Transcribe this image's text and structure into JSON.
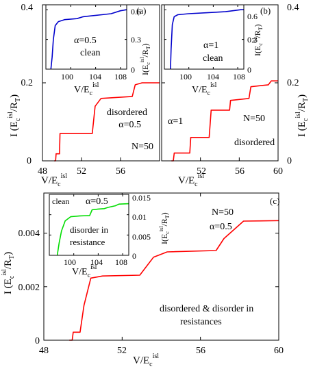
{
  "chart_data": [
    {
      "type": "line",
      "panel_label": "(a)",
      "xlabel": "V/E_c^isl",
      "ylabel": "I (E_c^isl/R_T)",
      "xlim": [
        48,
        60
      ],
      "ylim": [
        0,
        0.4
      ],
      "xticks": [
        "48",
        "52",
        "56",
        "60"
      ],
      "yticks": [
        "0",
        "0.2",
        "0.4"
      ],
      "annotations": [
        "disordered",
        "α=0.5",
        "N=50"
      ],
      "series": [
        {
          "color": "#ff0000",
          "points": [
            [
              49.2,
              0
            ],
            [
              49.35,
              0
            ],
            [
              49.4,
              0.018
            ],
            [
              49.75,
              0.018
            ],
            [
              49.8,
              0.07
            ],
            [
              53.1,
              0.07
            ],
            [
              53.4,
              0.14
            ],
            [
              54.0,
              0.16
            ],
            [
              57.2,
              0.165
            ],
            [
              57.5,
              0.195
            ],
            [
              58.2,
              0.2
            ],
            [
              60,
              0.2
            ]
          ]
        }
      ],
      "inset": {
        "xlabel": "V/E_c^isl",
        "ylabel": "I(E_c^isl/R_T)",
        "xlim": [
          96,
          109
        ],
        "ylim": [
          0,
          0.65
        ],
        "xticks": [
          "100",
          "104",
          "108"
        ],
        "yticks": [
          "0",
          "0.3",
          "0.6"
        ],
        "annotations": [
          "α=0.5",
          "clean"
        ],
        "series": [
          {
            "color": "#0000cc",
            "points": [
              [
                96.8,
                0
              ],
              [
                97.0,
                0.12
              ],
              [
                97.2,
                0.3
              ],
              [
                97.5,
                0.44
              ],
              [
                98.0,
                0.48
              ],
              [
                99.0,
                0.5
              ],
              [
                101.0,
                0.51
              ],
              [
                102.0,
                0.53
              ],
              [
                103.5,
                0.54
              ],
              [
                105.0,
                0.55
              ],
              [
                106.5,
                0.56
              ],
              [
                108.0,
                0.59
              ],
              [
                109,
                0.6
              ]
            ]
          }
        ]
      }
    },
    {
      "type": "line",
      "panel_label": "(b)",
      "xlabel": "V/E_c^isl",
      "ylabel": "I (E_c^isl/R_T)",
      "xlim": [
        48,
        60
      ],
      "ylim": [
        0,
        0.4
      ],
      "xticks": [
        "48",
        "52",
        "56",
        "60"
      ],
      "yticks": [
        "0",
        "0.2",
        "0.4"
      ],
      "annotations": [
        "α=1",
        "N=50",
        "disordered"
      ],
      "series": [
        {
          "color": "#ff0000",
          "points": [
            [
              49.0,
              0
            ],
            [
              49.2,
              0
            ],
            [
              49.3,
              0.02
            ],
            [
              50.9,
              0.02
            ],
            [
              51.0,
              0.06
            ],
            [
              52.9,
              0.06
            ],
            [
              53.1,
              0.13
            ],
            [
              55.0,
              0.13
            ],
            [
              55.1,
              0.155
            ],
            [
              57.0,
              0.16
            ],
            [
              57.2,
              0.19
            ],
            [
              59.0,
              0.195
            ],
            [
              59.3,
              0.205
            ],
            [
              60,
              0.205
            ]
          ]
        }
      ],
      "inset": {
        "xlabel": "V/E_c^isl",
        "ylabel": "I(E_c^isl/R_T)",
        "xlim": [
          96,
          109
        ],
        "ylim": [
          0,
          0.65
        ],
        "xticks": [
          "100",
          "104",
          "108"
        ],
        "yticks": [
          "0",
          "0.3",
          "0.6"
        ],
        "annotations": [
          "α=1",
          "clean"
        ],
        "series": [
          {
            "color": "#0000cc",
            "points": [
              [
                97.0,
                0
              ],
              [
                97.1,
                0.2
              ],
              [
                97.3,
                0.45
              ],
              [
                97.6,
                0.53
              ],
              [
                98.2,
                0.55
              ],
              [
                100,
                0.56
              ],
              [
                103,
                0.57
              ],
              [
                106,
                0.58
              ],
              [
                108.5,
                0.6
              ],
              [
                109,
                0.6
              ]
            ]
          }
        ]
      }
    },
    {
      "type": "line",
      "panel_label": "(c)",
      "xlabel": "V/E_c^isl",
      "ylabel": "I (E_c^isl/R_T)",
      "xlim": [
        48,
        60
      ],
      "ylim": [
        0,
        0.0055
      ],
      "xticks": [
        "48",
        "52",
        "56",
        "60"
      ],
      "yticks": [
        "0",
        "0.002",
        "0.004"
      ],
      "annotations": [
        "N=50",
        "α=0.5",
        "disordered & disorder in",
        "resistances"
      ],
      "series": [
        {
          "color": "#ff0000",
          "points": [
            [
              49.3,
              0
            ],
            [
              49.45,
              0
            ],
            [
              49.5,
              0.0003
            ],
            [
              49.85,
              0.0003
            ],
            [
              50.05,
              0.0013
            ],
            [
              50.4,
              0.00232
            ],
            [
              51.0,
              0.0024
            ],
            [
              52.9,
              0.00243
            ],
            [
              53.6,
              0.0031
            ],
            [
              54.3,
              0.0033
            ],
            [
              56.8,
              0.00335
            ],
            [
              57.2,
              0.0038
            ],
            [
              58.2,
              0.00445
            ],
            [
              60,
              0.00447
            ]
          ]
        }
      ],
      "inset": {
        "xlabel": "V/E_c^isl",
        "ylabel": "I(E_c^isl/R_T)",
        "xlim": [
          96,
          109
        ],
        "ylim": [
          0,
          0.015
        ],
        "xticks": [
          "100",
          "104",
          "108"
        ],
        "yticks": [
          "0",
          "0.005",
          "0.01",
          "0.015"
        ],
        "annotations": [
          "clean",
          "α=0.5",
          "disorder in",
          "resistance"
        ],
        "series": [
          {
            "color": "#00dd00",
            "points": [
              [
                97.3,
                0
              ],
              [
                97.6,
                0.003
              ],
              [
                98.0,
                0.006
              ],
              [
                98.6,
                0.0085
              ],
              [
                99.5,
                0.0095
              ],
              [
                101,
                0.0097
              ],
              [
                102.6,
                0.0098
              ],
              [
                103.0,
                0.0112
              ],
              [
                104,
                0.0114
              ],
              [
                105,
                0.0115
              ],
              [
                105.6,
                0.0118
              ],
              [
                106.8,
                0.0122
              ],
              [
                107.4,
                0.0126
              ],
              [
                109,
                0.0127
              ]
            ]
          }
        ]
      }
    }
  ]
}
